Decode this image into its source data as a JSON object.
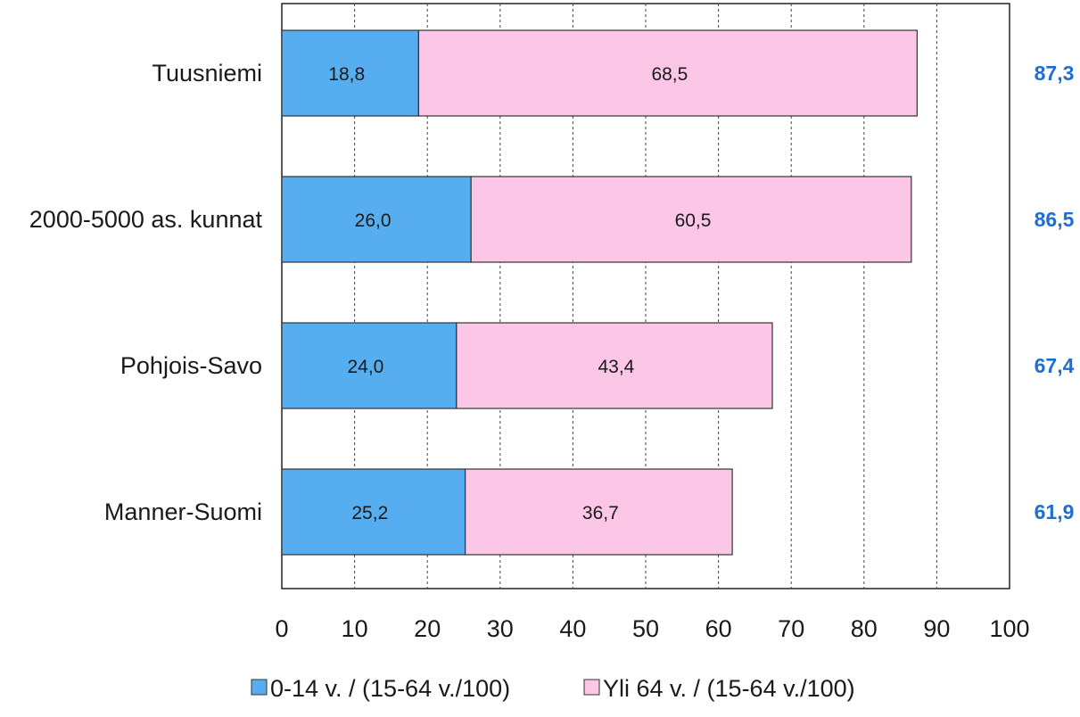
{
  "chart_data": {
    "type": "bar",
    "orientation": "horizontal",
    "stacked": true,
    "title": "",
    "xlabel": "",
    "ylabel": "",
    "xlim": [
      0,
      100
    ],
    "x_ticks": [
      "0",
      "10",
      "20",
      "30",
      "40",
      "50",
      "60",
      "70",
      "80",
      "90",
      "100"
    ],
    "grid": "vertical-dashed",
    "legend_position": "bottom",
    "categories": [
      "Tuusniemi",
      "2000-5000 as. kunnat",
      "Pohjois-Savo",
      "Manner-Suomi"
    ],
    "series": [
      {
        "name": "0-14 v. / (15-64 v./100)",
        "color": "#56aef0",
        "values": [
          18.8,
          26.0,
          24.0,
          25.2
        ],
        "labels": [
          "18,8",
          "26,0",
          "24,0",
          "25,2"
        ]
      },
      {
        "name": "Yli 64 v. / (15-64 v./100)",
        "color": "#fcc6e6",
        "values": [
          68.5,
          60.5,
          43.4,
          36.7
        ],
        "labels": [
          "68,5",
          "60,5",
          "43,4",
          "36,7"
        ]
      }
    ],
    "totals": {
      "color": "#1d6fd1",
      "values": [
        87.3,
        86.5,
        67.4,
        61.9
      ],
      "labels": [
        "87,3",
        "86,5",
        "67,4",
        "61,9"
      ]
    }
  }
}
